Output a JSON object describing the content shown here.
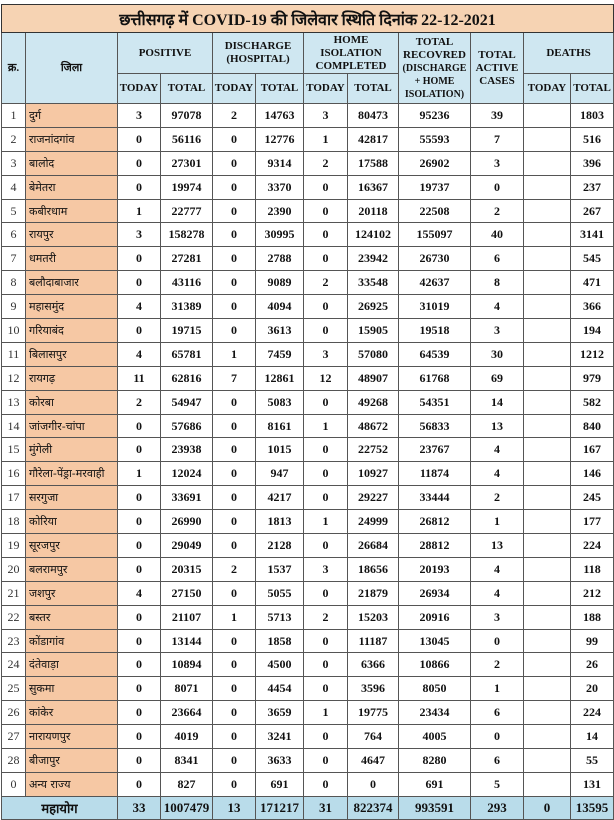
{
  "title": "छत्तीसगढ़ में COVID-19 की जिलेवार स्थिति दिनांक 22-12-2021",
  "headers": {
    "sn": "क्र.",
    "district": "जिला",
    "positive": "POSITIVE",
    "discharge": "DISCHARGE (HOSPITAL)",
    "home_isolation": "HOME ISOLATION COMPLETED",
    "recovered": "TOTAL RECOVRED",
    "recovered_note": "(DISCHARGE + HOME ISOLATION)",
    "active": "TOTAL ACTIVE CASES",
    "deaths": "DEATHS",
    "today": "TODAY",
    "total": "TOTAL"
  },
  "colors": {
    "title_bg": "#f6d3b3",
    "header_bg": "#cfe7f1",
    "district_bg": "#f6c8a4",
    "total_bg": "#b9dcea"
  },
  "rows": [
    [
      "1",
      "दुर्ग",
      "3",
      "97078",
      "2",
      "14763",
      "3",
      "80473",
      "95236",
      "39",
      "",
      "1803"
    ],
    [
      "2",
      "राजनांदगांव",
      "0",
      "56116",
      "0",
      "12776",
      "1",
      "42817",
      "55593",
      "7",
      "",
      "516"
    ],
    [
      "3",
      "बालोद",
      "0",
      "27301",
      "0",
      "9314",
      "2",
      "17588",
      "26902",
      "3",
      "",
      "396"
    ],
    [
      "4",
      "बेमेतरा",
      "0",
      "19974",
      "0",
      "3370",
      "0",
      "16367",
      "19737",
      "0",
      "",
      "237"
    ],
    [
      "5",
      "कबीरधाम",
      "1",
      "22777",
      "0",
      "2390",
      "0",
      "20118",
      "22508",
      "2",
      "",
      "267"
    ],
    [
      "6",
      "रायपुर",
      "3",
      "158278",
      "0",
      "30995",
      "0",
      "124102",
      "155097",
      "40",
      "",
      "3141"
    ],
    [
      "7",
      "धमतरी",
      "0",
      "27281",
      "0",
      "2788",
      "0",
      "23942",
      "26730",
      "6",
      "",
      "545"
    ],
    [
      "8",
      "बलौदाबाजार",
      "0",
      "43116",
      "0",
      "9089",
      "2",
      "33548",
      "42637",
      "8",
      "",
      "471"
    ],
    [
      "9",
      "महासमुंद",
      "4",
      "31389",
      "0",
      "4094",
      "0",
      "26925",
      "31019",
      "4",
      "",
      "366"
    ],
    [
      "10",
      "गरियाबंद",
      "0",
      "19715",
      "0",
      "3613",
      "0",
      "15905",
      "19518",
      "3",
      "",
      "194"
    ],
    [
      "11",
      "बिलासपुर",
      "4",
      "65781",
      "1",
      "7459",
      "3",
      "57080",
      "64539",
      "30",
      "",
      "1212"
    ],
    [
      "12",
      "रायगढ़",
      "11",
      "62816",
      "7",
      "12861",
      "12",
      "48907",
      "61768",
      "69",
      "",
      "979"
    ],
    [
      "13",
      "कोरबा",
      "2",
      "54947",
      "0",
      "5083",
      "0",
      "49268",
      "54351",
      "14",
      "",
      "582"
    ],
    [
      "14",
      "जांजगीर-चांपा",
      "0",
      "57686",
      "0",
      "8161",
      "1",
      "48672",
      "56833",
      "13",
      "",
      "840"
    ],
    [
      "15",
      "मुंगेली",
      "0",
      "23938",
      "0",
      "1015",
      "0",
      "22752",
      "23767",
      "4",
      "",
      "167"
    ],
    [
      "16",
      "गौरेला-पेंड्रा-मरवाही",
      "1",
      "12024",
      "0",
      "947",
      "0",
      "10927",
      "11874",
      "4",
      "",
      "146"
    ],
    [
      "17",
      "सरगुजा",
      "0",
      "33691",
      "0",
      "4217",
      "0",
      "29227",
      "33444",
      "2",
      "",
      "245"
    ],
    [
      "18",
      "कोरिया",
      "0",
      "26990",
      "0",
      "1813",
      "1",
      "24999",
      "26812",
      "1",
      "",
      "177"
    ],
    [
      "19",
      "सूरजपुर",
      "0",
      "29049",
      "0",
      "2128",
      "0",
      "26684",
      "28812",
      "13",
      "",
      "224"
    ],
    [
      "20",
      "बलरामपुर",
      "0",
      "20315",
      "2",
      "1537",
      "3",
      "18656",
      "20193",
      "4",
      "",
      "118"
    ],
    [
      "21",
      "जशपुर",
      "4",
      "27150",
      "0",
      "5055",
      "0",
      "21879",
      "26934",
      "4",
      "",
      "212"
    ],
    [
      "22",
      "बस्तर",
      "0",
      "21107",
      "1",
      "5713",
      "2",
      "15203",
      "20916",
      "3",
      "",
      "188"
    ],
    [
      "23",
      "कोंडागांव",
      "0",
      "13144",
      "0",
      "1858",
      "0",
      "11187",
      "13045",
      "0",
      "",
      "99"
    ],
    [
      "24",
      "दंतेवाड़ा",
      "0",
      "10894",
      "0",
      "4500",
      "0",
      "6366",
      "10866",
      "2",
      "",
      "26"
    ],
    [
      "25",
      "सुकमा",
      "0",
      "8071",
      "0",
      "4454",
      "0",
      "3596",
      "8050",
      "1",
      "",
      "20"
    ],
    [
      "26",
      "कांकेर",
      "0",
      "23664",
      "0",
      "3659",
      "1",
      "19775",
      "23434",
      "6",
      "",
      "224"
    ],
    [
      "27",
      "नारायणपुर",
      "0",
      "4019",
      "0",
      "3241",
      "0",
      "764",
      "4005",
      "0",
      "",
      "14"
    ],
    [
      "28",
      "बीजापुर",
      "0",
      "8341",
      "0",
      "3633",
      "0",
      "4647",
      "8280",
      "6",
      "",
      "55"
    ],
    [
      "0",
      "अन्य राज्य",
      "0",
      "827",
      "0",
      "691",
      "0",
      "0",
      "691",
      "5",
      "",
      "131"
    ]
  ],
  "total": {
    "label": "महायोग",
    "values": [
      "33",
      "1007479",
      "13",
      "171217",
      "31",
      "822374",
      "993591",
      "293",
      "0",
      "13595"
    ]
  }
}
